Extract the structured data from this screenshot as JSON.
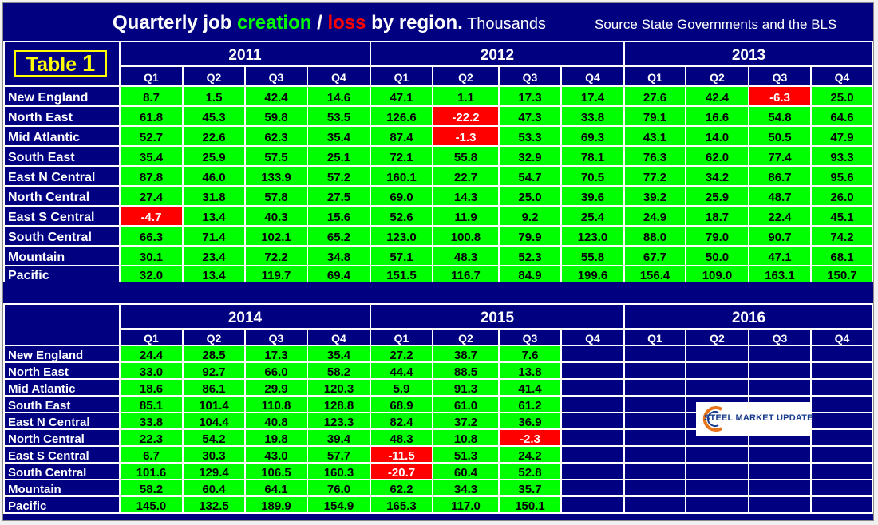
{
  "header": {
    "title_start": "Quarterly job ",
    "title_creation": "creation",
    "title_slash": " / ",
    "title_loss": "loss",
    "title_end": " by region.",
    "title_units": " Thousands",
    "source": "Source State Governments and the BLS"
  },
  "badge": {
    "label": "Table",
    "number": "1"
  },
  "logo": {
    "text": "STEEL MARKET UPDATE"
  },
  "colors": {
    "background": "#000080",
    "positive": "#00ff00",
    "negative": "#ff0000",
    "badge": "#ffff00"
  },
  "chart_data": [
    {
      "type": "table",
      "years": [
        "2011",
        "2012",
        "2013"
      ],
      "quarters": [
        "Q1",
        "Q2",
        "Q3",
        "Q4"
      ],
      "regions": [
        "New England",
        "North East",
        "Mid Atlantic",
        "South East",
        "East N Central",
        "North Central",
        "East S Central",
        "South Central",
        "Mountain",
        "Pacific"
      ],
      "rows": [
        [
          "8.7",
          "1.5",
          "42.4",
          "14.6",
          "47.1",
          "1.1",
          "17.3",
          "17.4",
          "27.6",
          "42.4",
          "-6.3",
          "25.0"
        ],
        [
          "61.8",
          "45.3",
          "59.8",
          "53.5",
          "126.6",
          "-22.2",
          "47.3",
          "33.8",
          "79.1",
          "16.6",
          "54.8",
          "64.6"
        ],
        [
          "52.7",
          "22.6",
          "62.3",
          "35.4",
          "87.4",
          "-1.3",
          "53.3",
          "69.3",
          "43.1",
          "14.0",
          "50.5",
          "47.9"
        ],
        [
          "35.4",
          "25.9",
          "57.5",
          "25.1",
          "72.1",
          "55.8",
          "32.9",
          "78.1",
          "76.3",
          "62.0",
          "77.4",
          "93.3"
        ],
        [
          "87.8",
          "46.0",
          "133.9",
          "57.2",
          "160.1",
          "22.7",
          "54.7",
          "70.5",
          "77.2",
          "34.2",
          "86.7",
          "95.6"
        ],
        [
          "27.4",
          "31.8",
          "57.8",
          "27.5",
          "69.0",
          "14.3",
          "25.0",
          "39.6",
          "39.2",
          "25.9",
          "48.7",
          "26.0"
        ],
        [
          "-4.7",
          "13.4",
          "40.3",
          "15.6",
          "52.6",
          "11.9",
          "9.2",
          "25.4",
          "24.9",
          "18.7",
          "22.4",
          "45.1"
        ],
        [
          "66.3",
          "71.4",
          "102.1",
          "65.2",
          "123.0",
          "100.8",
          "79.9",
          "123.0",
          "88.0",
          "79.0",
          "90.7",
          "74.2"
        ],
        [
          "30.1",
          "23.4",
          "72.2",
          "34.8",
          "57.1",
          "48.3",
          "52.3",
          "55.8",
          "67.7",
          "50.0",
          "47.1",
          "68.1"
        ],
        [
          "32.0",
          "13.4",
          "119.7",
          "69.4",
          "151.5",
          "116.7",
          "84.9",
          "199.6",
          "156.4",
          "109.0",
          "163.1",
          "150.7"
        ]
      ]
    },
    {
      "type": "table",
      "years": [
        "2014",
        "2015",
        "2016"
      ],
      "quarters": [
        "Q1",
        "Q2",
        "Q3",
        "Q4"
      ],
      "regions": [
        "New England",
        "North East",
        "Mid Atlantic",
        "South East",
        "East N Central",
        "North Central",
        "East S Central",
        "South Central",
        "Mountain",
        "Pacific"
      ],
      "rows": [
        [
          "24.4",
          "28.5",
          "17.3",
          "35.4",
          "27.2",
          "38.7",
          "7.6",
          "",
          "",
          "",
          "",
          ""
        ],
        [
          "33.0",
          "92.7",
          "66.0",
          "58.2",
          "44.4",
          "88.5",
          "13.8",
          "",
          "",
          "",
          "",
          ""
        ],
        [
          "18.6",
          "86.1",
          "29.9",
          "120.3",
          "5.9",
          "91.3",
          "41.4",
          "",
          "",
          "",
          "",
          ""
        ],
        [
          "85.1",
          "101.4",
          "110.8",
          "128.8",
          "68.9",
          "61.0",
          "61.2",
          "",
          "",
          "",
          "",
          ""
        ],
        [
          "33.8",
          "104.4",
          "40.8",
          "123.3",
          "82.4",
          "37.2",
          "36.9",
          "",
          "",
          "",
          "",
          ""
        ],
        [
          "22.3",
          "54.2",
          "19.8",
          "39.4",
          "48.3",
          "10.8",
          "-2.3",
          "",
          "",
          "",
          "",
          ""
        ],
        [
          "6.7",
          "30.3",
          "43.0",
          "57.7",
          "-11.5",
          "51.3",
          "24.2",
          "",
          "",
          "",
          "",
          ""
        ],
        [
          "101.6",
          "129.4",
          "106.5",
          "160.3",
          "-20.7",
          "60.4",
          "52.8",
          "",
          "",
          "",
          "",
          ""
        ],
        [
          "58.2",
          "60.4",
          "64.1",
          "76.0",
          "62.2",
          "34.3",
          "35.7",
          "",
          "",
          "",
          "",
          ""
        ],
        [
          "145.0",
          "132.5",
          "189.9",
          "154.9",
          "165.3",
          "117.0",
          "150.1",
          "",
          "",
          "",
          "",
          ""
        ]
      ]
    }
  ]
}
